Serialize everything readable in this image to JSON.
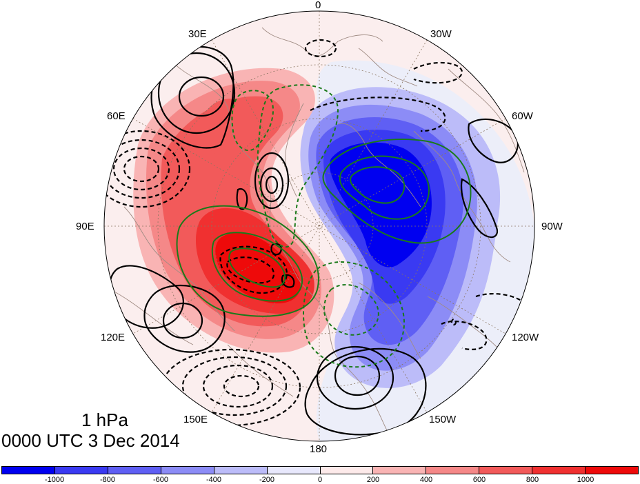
{
  "longitude_labels": {
    "lon_0": "0",
    "lon_30w": "30W",
    "lon_60w": "60W",
    "lon_90w": "90W",
    "lon_120w": "120W",
    "lon_150w": "150W",
    "lon_180": "180",
    "lon_150e": "150E",
    "lon_120e": "120E",
    "lon_90e": "90E",
    "lon_60e": "60E",
    "lon_30e": "30E"
  },
  "caption": {
    "level": "1 hPa",
    "datetime": "0000 UTC 3 Dec 2014"
  },
  "colorbar": {
    "colors": [
      "#0000f0",
      "#3a3af2",
      "#5f5ff4",
      "#8c8cf6",
      "#bcbcf9",
      "#e8e8fc",
      "#fdeaea",
      "#f9b4b4",
      "#f58888",
      "#f25a5a",
      "#f03030",
      "#ee0a0a"
    ],
    "tick_labels": [
      "-1000",
      "-800",
      "-600",
      "-400",
      "-200",
      "0",
      "200",
      "400",
      "600",
      "800",
      "1000"
    ]
  },
  "map_colors": {
    "background": "#f3eef7",
    "coast": "#a08c84",
    "grid": "#8a7560",
    "contour_black": "#000000",
    "contour_green": "#1a7a1a"
  }
}
